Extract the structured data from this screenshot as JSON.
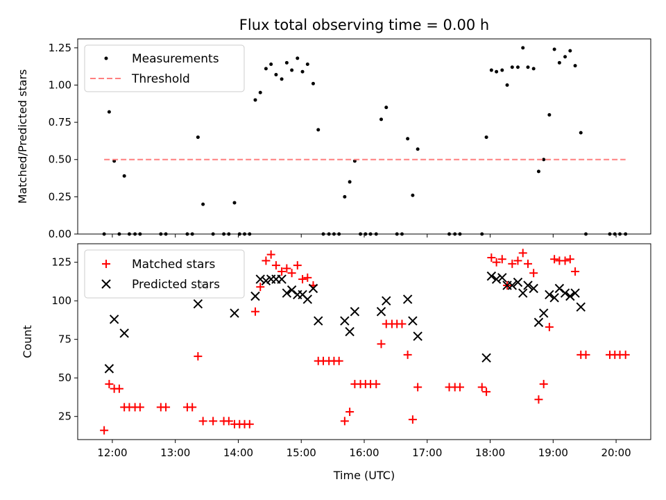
{
  "chart_data": {
    "type": "scatter",
    "title": "Flux total observing time = 0.00 h",
    "xlabel": "Time (UTC)",
    "x_unit": "hours UTC",
    "xlim": [
      11.45,
      20.55
    ],
    "xticks": [
      12,
      13,
      14,
      15,
      16,
      17,
      18,
      19,
      20
    ],
    "xtick_labels": [
      "12:00",
      "13:00",
      "14:00",
      "15:00",
      "16:00",
      "17:00",
      "18:00",
      "19:00",
      "20:00"
    ],
    "panels": [
      {
        "name": "ratio",
        "ylabel": "Matched/Predicted stars",
        "ylim": [
          0,
          1.31
        ],
        "yticks": [
          0.0,
          0.25,
          0.5,
          0.75,
          1.0,
          1.25
        ],
        "ytick_labels": [
          "0.00",
          "0.25",
          "0.50",
          "0.75",
          "1.00",
          "1.25"
        ],
        "legend_position": "upper-left",
        "series": [
          {
            "name": "Measurements",
            "marker": "dot",
            "color": "#000000",
            "x": [
              11.87,
              11.95,
              12.03,
              12.11,
              12.19,
              12.27,
              12.36,
              12.44,
              12.77,
              12.85,
              13.19,
              13.27,
              13.36,
              13.44,
              13.6,
              13.77,
              13.85,
              13.94,
              14.02,
              14.1,
              14.18,
              14.27,
              14.35,
              14.44,
              14.52,
              14.6,
              14.69,
              14.77,
              14.85,
              14.94,
              15.02,
              15.1,
              15.19,
              15.27,
              15.35,
              15.44,
              15.52,
              15.6,
              15.69,
              15.77,
              15.85,
              15.94,
              16.02,
              16.1,
              16.19,
              16.27,
              16.35,
              16.52,
              16.6,
              16.69,
              16.77,
              16.85,
              17.35,
              17.44,
              17.52,
              17.87,
              17.94,
              18.02,
              18.1,
              18.19,
              18.27,
              18.35,
              18.44,
              18.52,
              18.6,
              18.69,
              18.77,
              18.85,
              18.94,
              19.02,
              19.1,
              19.19,
              19.27,
              19.35,
              19.44,
              19.52,
              19.9,
              19.98,
              20.06,
              20.15
            ],
            "y": [
              0.0,
              0.82,
              0.49,
              0.0,
              0.39,
              0.0,
              0.0,
              0.0,
              0.0,
              0.0,
              0.0,
              0.0,
              0.65,
              0.2,
              0.0,
              0.0,
              0.0,
              0.21,
              0.0,
              0.0,
              0.0,
              0.9,
              0.95,
              1.11,
              1.14,
              1.07,
              1.04,
              1.15,
              1.1,
              1.18,
              1.09,
              1.14,
              1.01,
              0.7,
              0.0,
              0.0,
              0.0,
              0.0,
              0.25,
              0.35,
              0.49,
              0.0,
              0.0,
              0.0,
              0.0,
              0.77,
              0.85,
              0.0,
              0.0,
              0.64,
              0.26,
              0.57,
              0.0,
              0.0,
              0.0,
              0.0,
              0.65,
              1.1,
              1.09,
              1.1,
              1.0,
              1.12,
              1.12,
              1.25,
              1.12,
              1.11,
              0.42,
              0.5,
              0.8,
              1.24,
              1.15,
              1.19,
              1.23,
              1.13,
              0.68,
              0.0,
              0.0,
              0.0,
              0.0,
              0.0
            ]
          },
          {
            "name": "Threshold",
            "marker": "dashed-line",
            "color": "#ff7f7f",
            "x": [
              11.87,
              20.15
            ],
            "y": [
              0.5,
              0.5
            ]
          }
        ]
      },
      {
        "name": "counts",
        "ylabel": "Count",
        "ylim": [
          10,
          137
        ],
        "yticks": [
          25,
          50,
          75,
          100,
          125
        ],
        "ytick_labels": [
          "25",
          "50",
          "75",
          "100",
          "125"
        ],
        "legend_position": "upper-left",
        "series": [
          {
            "name": "Matched stars",
            "marker": "plus",
            "color": "#ff0000",
            "x": [
              11.87,
              11.95,
              12.03,
              12.11,
              12.19,
              12.27,
              12.36,
              12.44,
              12.77,
              12.85,
              13.19,
              13.27,
              13.36,
              13.44,
              13.6,
              13.77,
              13.85,
              13.94,
              14.02,
              14.1,
              14.18,
              14.27,
              14.35,
              14.44,
              14.52,
              14.6,
              14.69,
              14.77,
              14.85,
              14.94,
              15.02,
              15.1,
              15.19,
              15.27,
              15.35,
              15.44,
              15.52,
              15.6,
              15.69,
              15.77,
              15.85,
              15.94,
              16.02,
              16.1,
              16.19,
              16.27,
              16.35,
              16.44,
              16.52,
              16.6,
              16.69,
              16.77,
              16.85,
              17.35,
              17.44,
              17.52,
              17.87,
              17.94,
              18.02,
              18.1,
              18.19,
              18.27,
              18.35,
              18.44,
              18.52,
              18.6,
              18.69,
              18.77,
              18.85,
              18.94,
              19.02,
              19.1,
              19.19,
              19.27,
              19.35,
              19.44,
              19.52,
              19.9,
              19.98,
              20.06,
              20.15
            ],
            "y": [
              16,
              46,
              43,
              43,
              31,
              31,
              31,
              31,
              31,
              31,
              31,
              31,
              64,
              22,
              22,
              22,
              22,
              20,
              20,
              20,
              20,
              93,
              109,
              126,
              130,
              123,
              119,
              121,
              118,
              123,
              114,
              115,
              110,
              61,
              61,
              61,
              61,
              61,
              22,
              28,
              46,
              46,
              46,
              46,
              46,
              72,
              85,
              85,
              85,
              85,
              65,
              23,
              44,
              44,
              44,
              44,
              44,
              41,
              128,
              125,
              127,
              110,
              124,
              126,
              131,
              124,
              118,
              36,
              46,
              83,
              127,
              126,
              126,
              127,
              119,
              65,
              65,
              65,
              65,
              65,
              65
            ]
          },
          {
            "name": "Predicted stars",
            "marker": "cross",
            "color": "#000000",
            "x": [
              11.95,
              12.03,
              12.19,
              13.36,
              13.44,
              13.94,
              14.27,
              14.35,
              14.44,
              14.52,
              14.6,
              14.69,
              14.77,
              14.85,
              14.94,
              15.02,
              15.1,
              15.19,
              15.27,
              15.69,
              15.77,
              15.85,
              16.27,
              16.35,
              16.69,
              16.77,
              16.85,
              17.94,
              18.02,
              18.1,
              18.19,
              18.27,
              18.35,
              18.44,
              18.52,
              18.6,
              18.69,
              18.77,
              18.85,
              18.94,
              19.02,
              19.1,
              19.19,
              19.27,
              19.35,
              19.44
            ],
            "y": [
              56,
              88,
              79,
              98,
              110,
              92,
              103,
              114,
              113,
              114,
              114,
              114,
              105,
              107,
              104,
              104,
              101,
              108,
              87,
              87,
              80,
              93,
              93,
              100,
              101,
              87,
              77,
              63,
              116,
              114,
              115,
              110,
              110,
              112,
              105,
              110,
              108,
              86,
              92,
              104,
              102,
              108,
              105,
              103,
              105,
              96
            ]
          }
        ]
      }
    ]
  }
}
